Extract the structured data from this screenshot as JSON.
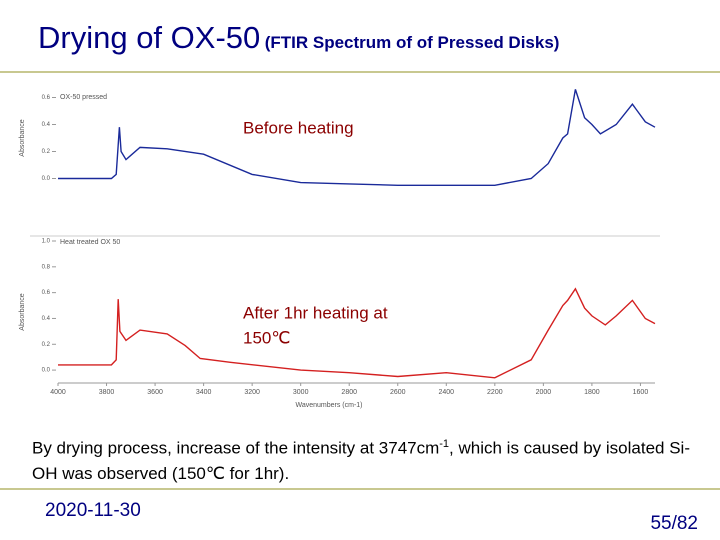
{
  "header": {
    "title": "Drying of OX-50",
    "subtitle": "(FTIR Spectrum of of Pressed Disks)"
  },
  "chart_data": [
    {
      "type": "line",
      "ylabel": "Absorbance",
      "series": [
        {
          "name": "OX-50 pressed",
          "color": "#1a2a9a",
          "x": [
            4000,
            3780,
            3760,
            3747,
            3740,
            3720,
            3662,
            3550,
            3400,
            3200,
            3000,
            2800,
            2600,
            2400,
            2200,
            2050,
            1980,
            1920,
            1900,
            1868,
            1830,
            1800,
            1765,
            1700,
            1633,
            1580,
            1540
          ],
          "values": [
            0.0,
            0.0,
            0.03,
            0.38,
            0.2,
            0.14,
            0.23,
            0.22,
            0.18,
            0.03,
            -0.03,
            -0.04,
            -0.05,
            -0.05,
            -0.05,
            0.0,
            0.11,
            0.3,
            0.33,
            0.66,
            0.45,
            0.4,
            0.33,
            0.4,
            0.55,
            0.42,
            0.38
          ]
        }
      ],
      "xlim": [
        4000,
        1540
      ],
      "ylim": [
        -0.1,
        0.7
      ],
      "yticks": [
        0.6,
        0.4,
        0.2,
        {
          "value": 0,
          "label": "0.0"
        }
      ],
      "annotation": "Before heating"
    },
    {
      "type": "line",
      "ylabel": "Absorbance",
      "xlabel": "Wavenumbers (cm-1)",
      "series": [
        {
          "name": "Heat treated OX 50",
          "color": "#d42020",
          "x": [
            4000,
            3780,
            3760,
            3752,
            3745,
            3720,
            3662,
            3550,
            3476,
            3414,
            3290,
            3000,
            2800,
            2600,
            2400,
            2200,
            2050,
            1980,
            1920,
            1900,
            1868,
            1830,
            1800,
            1745,
            1700,
            1633,
            1580,
            1540
          ],
          "values": [
            0.04,
            0.04,
            0.08,
            0.55,
            0.3,
            0.23,
            0.31,
            0.28,
            0.19,
            0.09,
            0.06,
            0.0,
            -0.02,
            -0.05,
            -0.02,
            -0.06,
            0.08,
            0.31,
            0.5,
            0.54,
            0.63,
            0.48,
            0.42,
            0.35,
            0.42,
            0.54,
            0.4,
            0.36
          ]
        }
      ],
      "xlim": [
        4000,
        1540
      ],
      "ylim": [
        -0.1,
        1.0
      ],
      "yticks": [
        {
          "value": 1,
          "label": "1.0"
        },
        0.8,
        0.6,
        0.4,
        0.2,
        {
          "value": 0,
          "label": "0.0"
        }
      ],
      "xticks": [
        4000,
        3800,
        3600,
        3400,
        3200,
        3000,
        2800,
        2600,
        2400,
        2200,
        2000,
        1800,
        1600
      ],
      "annotation": [
        "After 1hr heating at",
        "150℃"
      ]
    }
  ],
  "body": {
    "before": "By drying process, increase of the intensity at 3747cm",
    "sup": "-1",
    "after": ", which is caused by isolated Si-OH was observed (150℃ for 1hr)."
  },
  "footer": {
    "date": "2020-11-30",
    "page": "55/82"
  }
}
